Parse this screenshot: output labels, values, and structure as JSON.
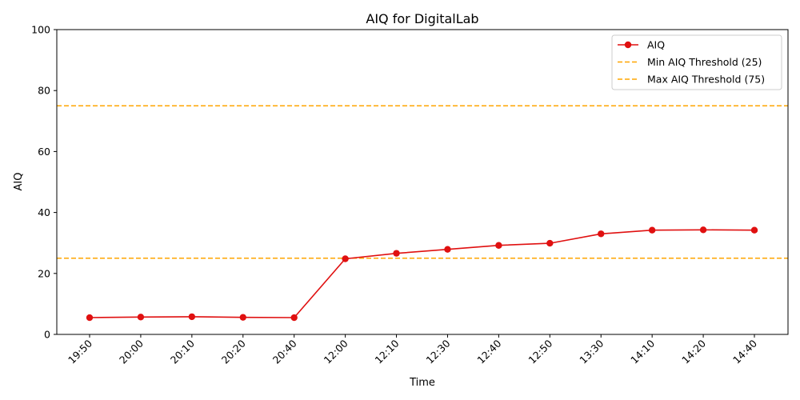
{
  "chart_data": {
    "type": "line",
    "title": "AIQ for DigitalLab",
    "xlabel": "Time",
    "ylabel": "AIQ",
    "categories": [
      "19:50",
      "20:00",
      "20:10",
      "20:20",
      "20:40",
      "12:00",
      "12:10",
      "12:30",
      "12:40",
      "12:50",
      "13:30",
      "14:10",
      "14:20",
      "14:40"
    ],
    "series": [
      {
        "name": "AIQ",
        "color": "#e01010",
        "values": [
          5.5,
          5.7,
          5.8,
          5.6,
          5.5,
          24.8,
          26.6,
          27.9,
          29.2,
          29.9,
          33.0,
          34.2,
          34.3,
          34.2
        ]
      }
    ],
    "thresholds": [
      {
        "name": "Min AIQ Threshold (25)",
        "value": 25,
        "color": "#ffa500"
      },
      {
        "name": "Max AIQ Threshold (75)",
        "value": 75,
        "color": "#ffa500"
      }
    ],
    "ylim": [
      0,
      100
    ],
    "yticks": [
      0,
      20,
      40,
      60,
      80,
      100
    ],
    "grid": false,
    "legend": "top-right"
  }
}
